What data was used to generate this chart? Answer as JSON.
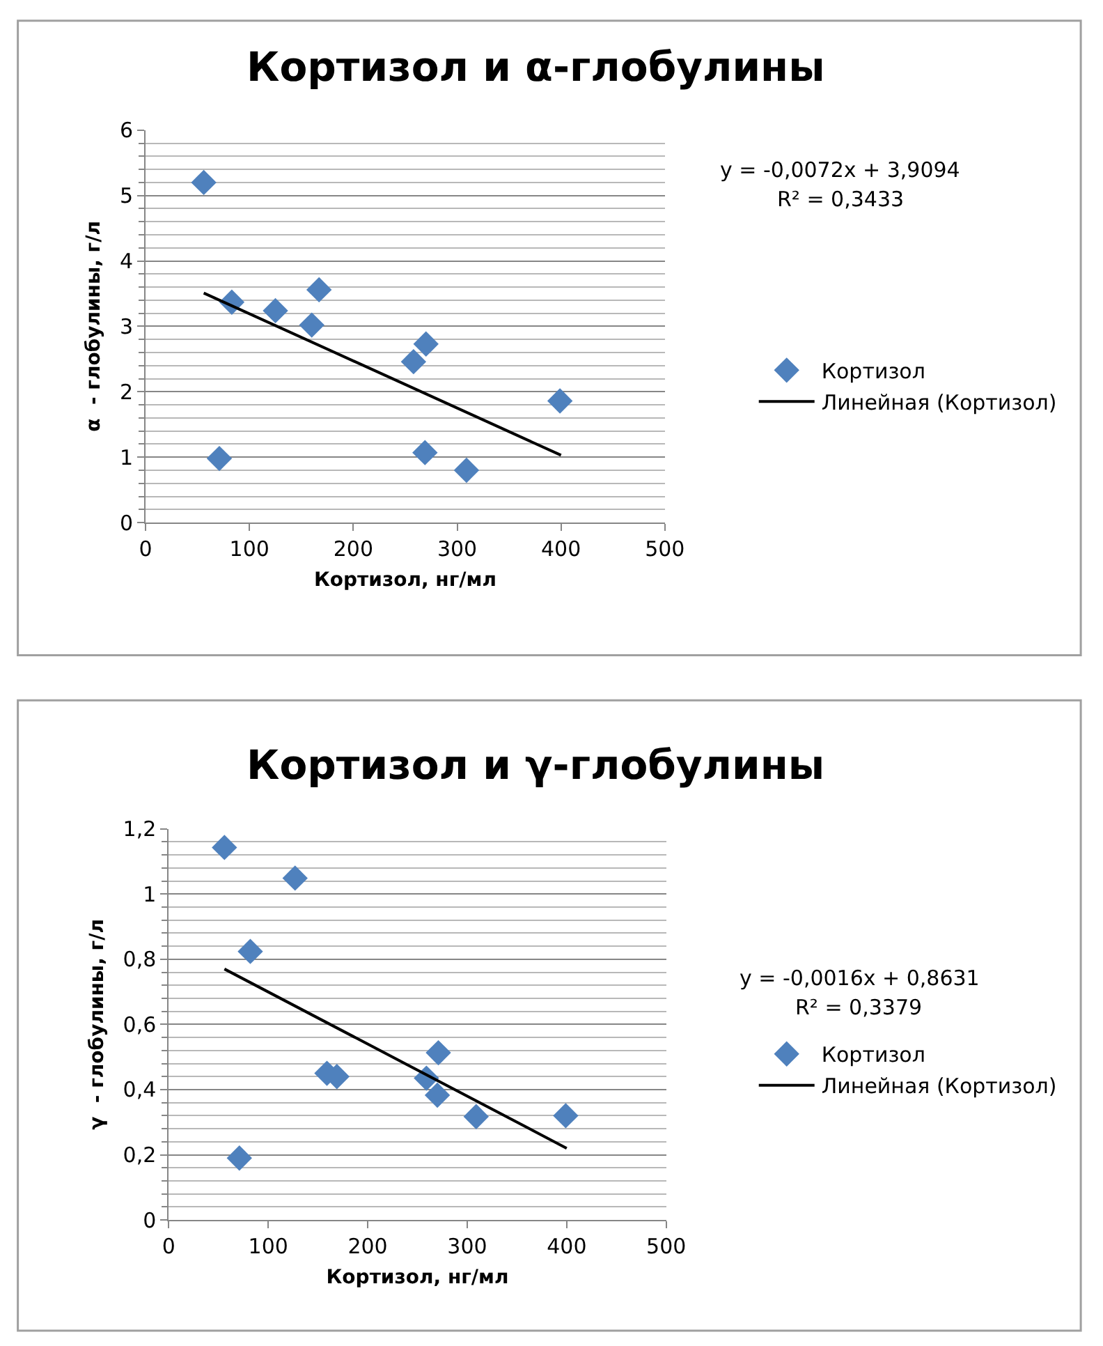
{
  "chart_data": [
    {
      "type": "scatter",
      "title": "Кортизол и α-глобулины",
      "xlabel": "Кортизол, нг/мл",
      "ylabel": "α  - глобулины, г/л",
      "xlim": [
        0,
        500
      ],
      "xticks": [
        0,
        100,
        200,
        300,
        400,
        500
      ],
      "ylim": [
        0,
        6
      ],
      "yticks": [
        0,
        1,
        2,
        3,
        4,
        5,
        6
      ],
      "grid": "y",
      "legend": "right",
      "annotations": [
        "y = -0,0072x + 3,9094",
        "R² = 0,3433"
      ],
      "series": [
        {
          "name": "Кортизол",
          "marker": "diamond",
          "color": "#4f81bd",
          "x": [
            56,
            83,
            125,
            167,
            160,
            270,
            258,
            399,
            71,
            269,
            309
          ],
          "values": [
            5.2,
            3.37,
            3.24,
            3.56,
            3.02,
            2.73,
            2.46,
            1.86,
            0.98,
            1.07,
            0.8
          ]
        },
        {
          "name": "Линейная (Кортизол)",
          "type": "line",
          "color": "#000000",
          "marker": "none",
          "x": [
            56,
            400
          ],
          "values": [
            3.51,
            1.03
          ]
        }
      ]
    },
    {
      "type": "scatter",
      "title": "Кортизол и γ-глобулины",
      "xlabel": "Кортизол, нг/мл",
      "ylabel": "γ  - глобулины, г/л",
      "xlim": [
        0,
        500
      ],
      "xticks": [
        0,
        100,
        200,
        300,
        400,
        500
      ],
      "ylim": [
        0,
        1.2
      ],
      "yticks": [
        0,
        {
          "value": 0.2,
          "label": "0,2"
        },
        {
          "value": 0.4,
          "label": "0,4"
        },
        {
          "value": 0.6,
          "label": "0,6"
        },
        {
          "value": 0.8,
          "label": "0,8"
        },
        1,
        {
          "value": 1.2,
          "label": "1,2"
        }
      ],
      "grid": "y",
      "legend": "right",
      "annotations": [
        "y = -0,0016x + 0,8631",
        "R² = 0,3379"
      ],
      "series": [
        {
          "name": "Кортизол",
          "marker": "diamond",
          "color": "#4f81bd",
          "x": [
            56,
            127,
            82,
            159,
            169,
            271,
            259,
            270,
            309,
            399,
            71
          ],
          "values": [
            1.143,
            1.049,
            0.824,
            0.45,
            0.44,
            0.513,
            0.435,
            0.383,
            0.317,
            0.32,
            0.19
          ]
        },
        {
          "name": "Линейная (Кортизол)",
          "type": "line",
          "color": "#000000",
          "marker": "none",
          "x": [
            56,
            400
          ],
          "values": [
            0.77,
            0.22
          ]
        }
      ]
    }
  ]
}
